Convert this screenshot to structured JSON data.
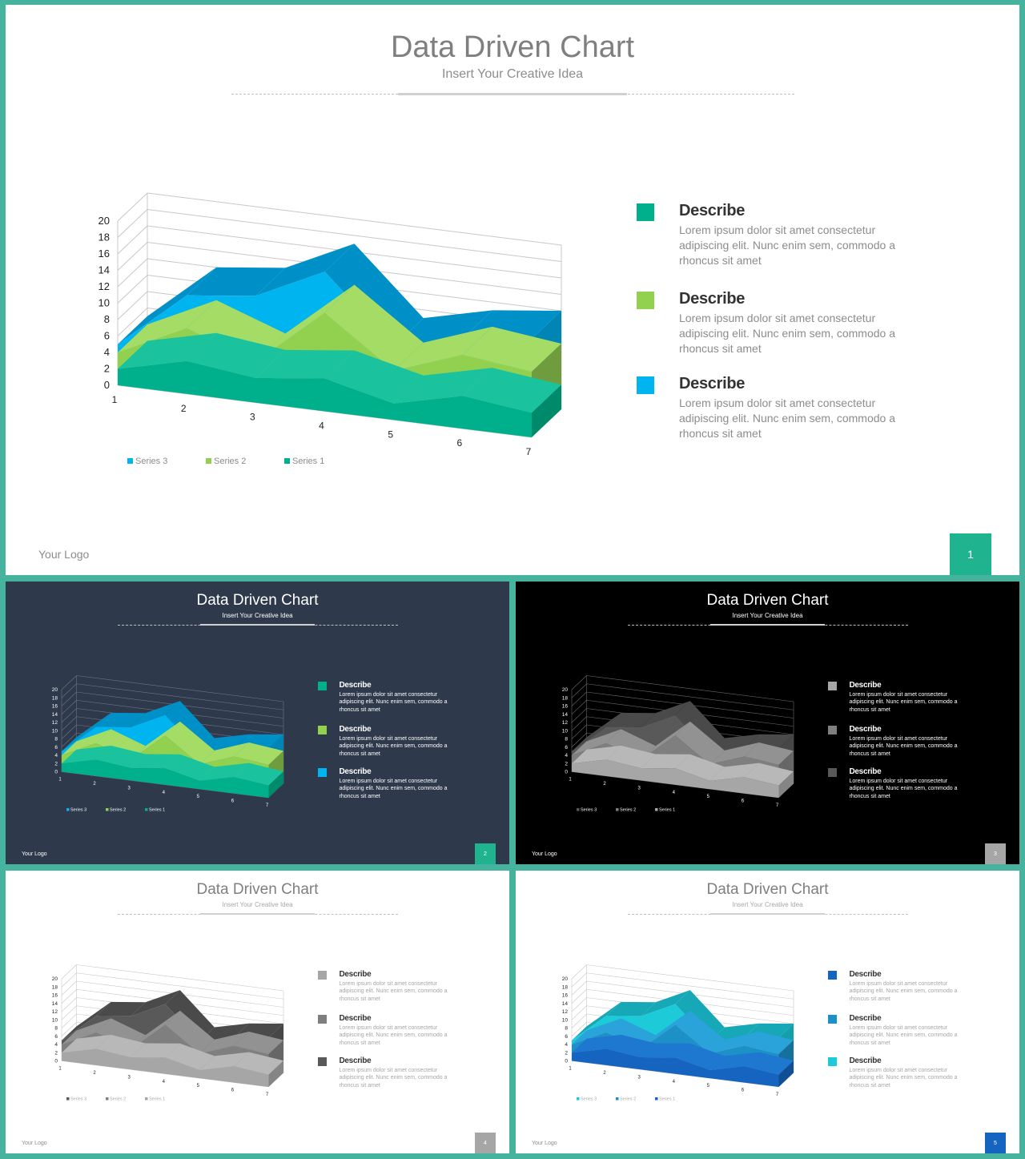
{
  "slides": [
    {
      "title": "Data Driven Chart",
      "subtitle": "Insert Your Creative Idea",
      "logo": "Your Logo",
      "page": "1",
      "theme": {
        "bg": "#ffffff",
        "title": "#7f7f7f",
        "sub": "#8c8c8c",
        "text": "#333333",
        "body": "#8c8c8c",
        "grid": "#c8c8c8",
        "axis": "#222222",
        "page_bg": "#1fb48f",
        "logo": "#8c8c8c",
        "series": {
          "s1": {
            "front": "#00b08c",
            "top": "#1ac39e",
            "side": "#008a6c"
          },
          "s2": {
            "front": "#92d050",
            "top": "#a5dc65",
            "side": "#6f9c3c"
          },
          "s3": {
            "front": "#00b4f0",
            "top": "#0090c8",
            "side": "#0085b5"
          }
        },
        "swatches": [
          "#00b08c",
          "#92d050",
          "#00b4f0"
        ]
      }
    },
    {
      "title": "Data Driven Chart",
      "subtitle": "Insert Your Creative Idea",
      "logo": "Your Logo",
      "page": "2",
      "theme": {
        "bg": "#2e3a4b",
        "title": "#ffffff",
        "sub": "#ffffff",
        "text": "#ffffff",
        "body": "#ffffff",
        "grid": "#6a7585",
        "axis": "#ffffff",
        "page_bg": "#1fb48f",
        "logo": "#ffffff",
        "series": {
          "s1": {
            "front": "#00b08c",
            "top": "#1ac39e",
            "side": "#008a6c"
          },
          "s2": {
            "front": "#92d050",
            "top": "#a5dc65",
            "side": "#6f9c3c"
          },
          "s3": {
            "front": "#00b4f0",
            "top": "#0090c8",
            "side": "#0085b5"
          }
        },
        "swatches": [
          "#00b08c",
          "#92d050",
          "#00b4f0"
        ]
      }
    },
    {
      "title": "Data Driven Chart",
      "subtitle": "Insert Your Creative Idea",
      "logo": "Your Logo",
      "page": "3",
      "theme": {
        "bg": "#000000",
        "title": "#ffffff",
        "sub": "#ffffff",
        "text": "#ffffff",
        "body": "#ffffff",
        "grid": "#6a6a6a",
        "axis": "#ffffff",
        "page_bg": "#a6a6a6",
        "logo": "#ffffff",
        "series": {
          "s1": {
            "front": "#a6a6a6",
            "top": "#b8b8b8",
            "side": "#858585"
          },
          "s2": {
            "front": "#7f7f7f",
            "top": "#929292",
            "side": "#666666"
          },
          "s3": {
            "front": "#595959",
            "top": "#4a4a4a",
            "side": "#474747"
          }
        },
        "swatches": [
          "#a6a6a6",
          "#7f7f7f",
          "#595959"
        ]
      }
    },
    {
      "title": "Data Driven Chart",
      "subtitle": "Insert Your Creative Idea",
      "logo": "Your Logo",
      "page": "4",
      "theme": {
        "bg": "#ffffff",
        "title": "#7f7f7f",
        "sub": "#a6a6a6",
        "text": "#333333",
        "body": "#a6a6a6",
        "grid": "#c8c8c8",
        "axis": "#222222",
        "page_bg": "#a6a6a6",
        "logo": "#8c8c8c",
        "series": {
          "s1": {
            "front": "#a6a6a6",
            "top": "#b8b8b8",
            "side": "#858585"
          },
          "s2": {
            "front": "#7f7f7f",
            "top": "#929292",
            "side": "#666666"
          },
          "s3": {
            "front": "#595959",
            "top": "#4a4a4a",
            "side": "#474747"
          }
        },
        "swatches": [
          "#a6a6a6",
          "#7f7f7f",
          "#595959"
        ]
      }
    },
    {
      "title": "Data Driven Chart",
      "subtitle": "Insert Your Creative Idea",
      "logo": "Your Logo",
      "page": "5",
      "theme": {
        "bg": "#ffffff",
        "title": "#7f7f7f",
        "sub": "#a6a6a6",
        "text": "#333333",
        "body": "#a6a6a6",
        "grid": "#c8c8c8",
        "axis": "#222222",
        "page_bg": "#1565c0",
        "logo": "#8c8c8c",
        "series": {
          "s1": {
            "front": "#1565c0",
            "top": "#1e78d0",
            "side": "#0f4f96"
          },
          "s2": {
            "front": "#1e90c8",
            "top": "#2aa2da",
            "side": "#16709c"
          },
          "s3": {
            "front": "#1ccad8",
            "top": "#17a8b8",
            "side": "#149fa9"
          }
        },
        "swatches": [
          "#1565c0",
          "#1e90c8",
          "#1ccad8"
        ]
      }
    }
  ],
  "descriptions": [
    {
      "heading": "Describe",
      "lines": [
        "Lorem ipsum dolor sit amet consectetur",
        "adipiscing elit. Nunc enim sem, commodo a",
        "rhoncus sit amet"
      ]
    },
    {
      "heading": "Describe",
      "lines": [
        "Lorem ipsum dolor sit amet consectetur",
        "adipiscing elit. Nunc enim sem, commodo a",
        "rhoncus sit amet"
      ]
    },
    {
      "heading": "Describe",
      "lines": [
        "Lorem ipsum dolor sit amet consectetur",
        "adipiscing elit. Nunc enim sem, commodo a",
        "rhoncus sit amet"
      ]
    }
  ],
  "chart_data": {
    "type": "area",
    "stacked": true,
    "three_d": true,
    "categories": [
      "1",
      "2",
      "3",
      "4",
      "5",
      "6",
      "7"
    ],
    "series": [
      {
        "name": "Series 1",
        "values": [
          2,
          4,
          3,
          4,
          2,
          4,
          3
        ]
      },
      {
        "name": "Series 2",
        "values": [
          2,
          4,
          2,
          8,
          4,
          5,
          5
        ]
      },
      {
        "name": "Series 3",
        "values": [
          1,
          4,
          8,
          5,
          3,
          2,
          4
        ]
      }
    ],
    "legend_order": [
      "Series 3",
      "Series 2",
      "Series 1"
    ],
    "ylim": [
      0,
      20
    ],
    "yticks": [
      "0",
      "2",
      "4",
      "6",
      "8",
      "10",
      "12",
      "14",
      "16",
      "18",
      "20"
    ],
    "grid": true,
    "legend_position": "bottom-left"
  }
}
